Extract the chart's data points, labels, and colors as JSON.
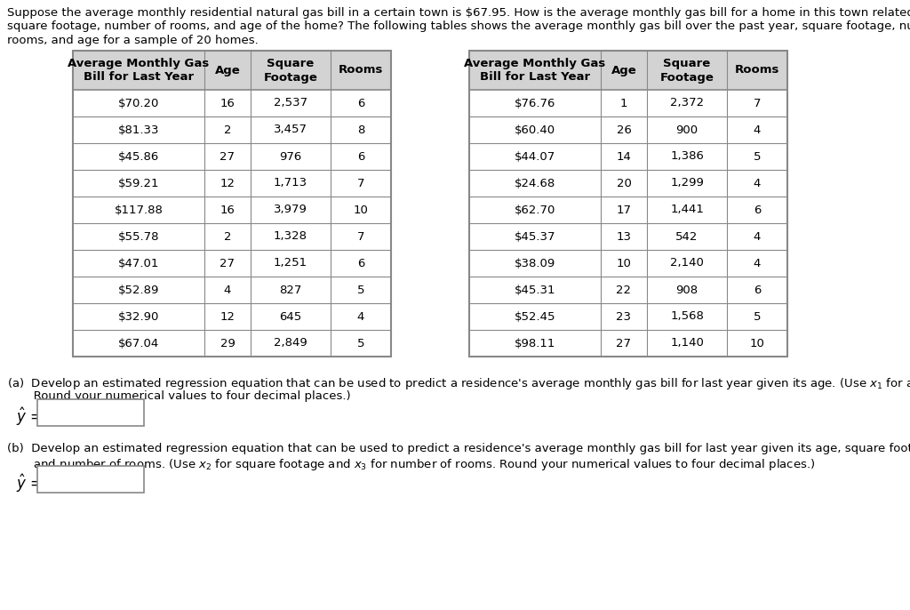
{
  "intro_lines": [
    "Suppose the average monthly residential natural gas bill in a certain town is $67.95. How is the average monthly gas bill for a home in this town related to the",
    "square footage, number of rooms, and age of the home? The following tables shows the average monthly gas bill over the past year, square footage, number of",
    "rooms, and age for a sample of 20 homes."
  ],
  "table1": {
    "headers": [
      "Average Monthly Gas\nBill for Last Year",
      "Age",
      "Square\nFootage",
      "Rooms"
    ],
    "rows": [
      [
        "$70.20",
        "16",
        "2,537",
        "6"
      ],
      [
        "$81.33",
        "2",
        "3,457",
        "8"
      ],
      [
        "$45.86",
        "27",
        "976",
        "6"
      ],
      [
        "$59.21",
        "12",
        "1,713",
        "7"
      ],
      [
        "$117.88",
        "16",
        "3,979",
        "10"
      ],
      [
        "$55.78",
        "2",
        "1,328",
        "7"
      ],
      [
        "$47.01",
        "27",
        "1,251",
        "6"
      ],
      [
        "$52.89",
        "4",
        "827",
        "5"
      ],
      [
        "$32.90",
        "12",
        "645",
        "4"
      ],
      [
        "$67.04",
        "29",
        "2,849",
        "5"
      ]
    ]
  },
  "table2": {
    "headers": [
      "Average Monthly Gas\nBill for Last Year",
      "Age",
      "Square\nFootage",
      "Rooms"
    ],
    "rows": [
      [
        "$76.76",
        "1",
        "2,372",
        "7"
      ],
      [
        "$60.40",
        "26",
        "900",
        "4"
      ],
      [
        "$44.07",
        "14",
        "1,386",
        "5"
      ],
      [
        "$24.68",
        "20",
        "1,299",
        "4"
      ],
      [
        "$62.70",
        "17",
        "1,441",
        "6"
      ],
      [
        "$45.37",
        "13",
        "542",
        "4"
      ],
      [
        "$38.09",
        "10",
        "2,140",
        "4"
      ],
      [
        "$45.31",
        "22",
        "908",
        "6"
      ],
      [
        "$52.45",
        "23",
        "1,568",
        "5"
      ],
      [
        "$98.11",
        "27",
        "1,140",
        "10"
      ]
    ]
  },
  "header_bg": "#d3d3d3",
  "border_color": "#888888",
  "text_color": "#000000",
  "bg_color": "#ffffff",
  "font_size": 9.5
}
